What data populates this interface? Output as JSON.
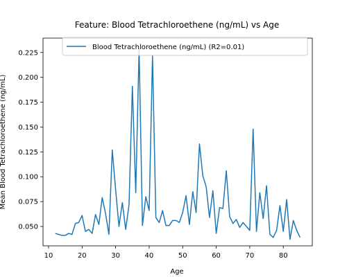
{
  "chart_data": {
    "type": "line",
    "title": "Feature: Blood Tetrachloroethene (ng/mL) vs Age",
    "xlabel": "Age",
    "ylabel": "Mean Blood Tetrachloroethene (ng/mL)",
    "xlim": [
      8.35,
      88.65
    ],
    "ylim": [
      0.0305,
      0.2395
    ],
    "xticks": [
      10,
      20,
      30,
      40,
      50,
      60,
      70,
      80
    ],
    "yticks": [
      0.05,
      0.075,
      0.1,
      0.125,
      0.15,
      0.175,
      0.2,
      0.225
    ],
    "ytick_labels": [
      "0.050",
      "0.075",
      "0.100",
      "0.125",
      "0.150",
      "0.175",
      "0.200",
      "0.225"
    ],
    "grid": false,
    "legend_position": "top-right",
    "series": [
      {
        "name": "Blood Tetrachloroethene (ng/mL) (R2=0.01)",
        "color": "#1f77b4",
        "x": [
          12,
          13,
          14,
          15,
          16,
          17,
          18,
          19,
          20,
          21,
          22,
          23,
          24,
          25,
          26,
          27,
          28,
          29,
          30,
          31,
          32,
          33,
          34,
          35,
          36,
          37,
          38,
          39,
          40,
          41,
          42,
          43,
          44,
          45,
          46,
          47,
          48,
          49,
          50,
          51,
          52,
          53,
          54,
          55,
          56,
          57,
          58,
          59,
          60,
          61,
          62,
          63,
          64,
          65,
          66,
          67,
          68,
          69,
          70,
          71,
          72,
          73,
          74,
          75,
          76,
          77,
          78,
          79,
          80,
          81,
          82,
          83,
          84,
          85
        ],
        "y": [
          0.043,
          0.042,
          0.041,
          0.041,
          0.043,
          0.042,
          0.053,
          0.054,
          0.061,
          0.045,
          0.047,
          0.043,
          0.062,
          0.052,
          0.079,
          0.063,
          0.042,
          0.127,
          0.087,
          0.05,
          0.074,
          0.047,
          0.072,
          0.191,
          0.084,
          0.229,
          0.051,
          0.08,
          0.066,
          0.222,
          0.059,
          0.054,
          0.066,
          0.051,
          0.051,
          0.056,
          0.056,
          0.054,
          0.064,
          0.081,
          0.052,
          0.085,
          0.064,
          0.133,
          0.101,
          0.09,
          0.059,
          0.086,
          0.043,
          0.069,
          0.068,
          0.106,
          0.06,
          0.053,
          0.057,
          0.049,
          0.054,
          0.05,
          0.046,
          0.148,
          0.045,
          0.084,
          0.058,
          0.091,
          0.042,
          0.039,
          0.046,
          0.071,
          0.045,
          0.077,
          0.037,
          0.056,
          0.046,
          0.039
        ]
      }
    ]
  }
}
